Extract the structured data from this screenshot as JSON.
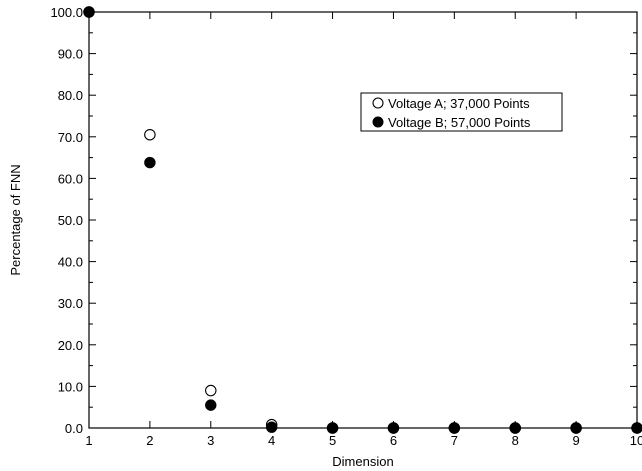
{
  "chart_data": {
    "type": "scatter",
    "xlabel": "Dimension",
    "ylabel": "Percentage of FNN",
    "xlim": [
      1,
      10
    ],
    "ylim": [
      0,
      100
    ],
    "x_ticks": [
      "1",
      "2",
      "3",
      "4",
      "5",
      "6",
      "7",
      "8",
      "9",
      "10"
    ],
    "y_ticks": [
      "0.0",
      "10.0",
      "20.0",
      "30.0",
      "40.0",
      "50.0",
      "60.0",
      "70.0",
      "80.0",
      "90.0",
      "100.0"
    ],
    "grid": false,
    "legend_position": "upper-right",
    "series": [
      {
        "name": "Voltage A; 37,000 Points",
        "marker": "open-circle",
        "x": [
          1,
          2,
          3,
          4,
          5,
          6,
          7,
          8,
          9,
          10
        ],
        "y": [
          100.0,
          70.5,
          9.0,
          0.8,
          0.0,
          0.0,
          0.0,
          0.0,
          0.0,
          0.0
        ]
      },
      {
        "name": "Voltage B; 57,000 Points",
        "marker": "filled-circle",
        "x": [
          1,
          2,
          3,
          4,
          5,
          6,
          7,
          8,
          9,
          10
        ],
        "y": [
          100.0,
          63.8,
          5.5,
          0.2,
          0.0,
          0.0,
          0.0,
          0.0,
          0.0,
          0.0
        ]
      }
    ]
  }
}
